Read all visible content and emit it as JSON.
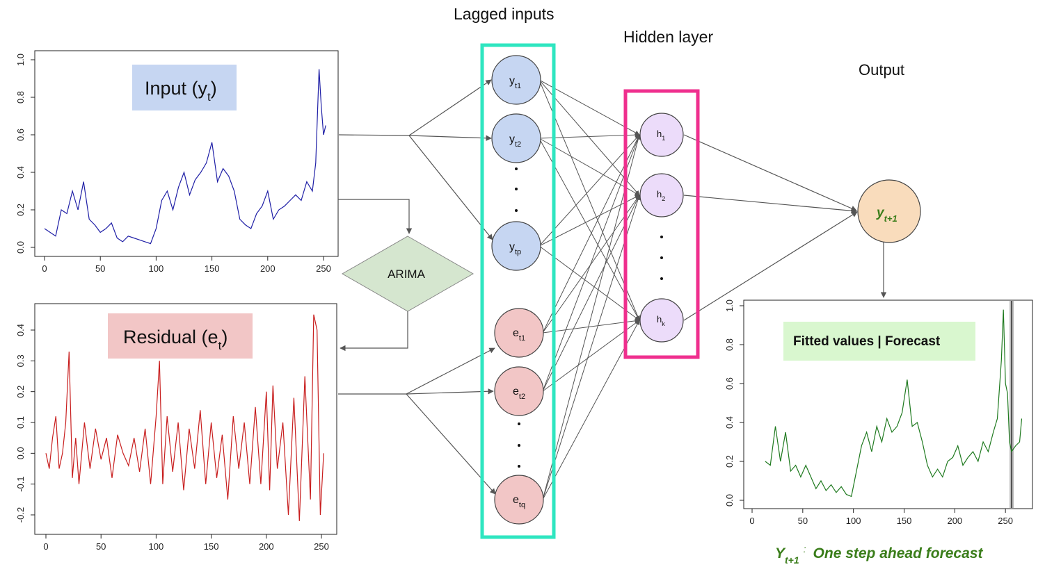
{
  "titles": {
    "lagged_inputs": "Lagged inputs",
    "hidden_layer": "Hidden layer",
    "output": "Output"
  },
  "panels": {
    "input": {
      "label_main": "Input (y",
      "label_sub": "t",
      "label_close": ")"
    },
    "residual": {
      "label_main": "Residual (e",
      "label_sub": "t",
      "label_close": ")"
    },
    "fitted": {
      "label": "Fitted values | Forecast"
    }
  },
  "arima": {
    "label": "ARIMA"
  },
  "nodes": {
    "y_inputs": [
      {
        "base": "y",
        "sub": "t1"
      },
      {
        "base": "y",
        "sub": "t2"
      },
      {
        "base": "y",
        "sub": "tp"
      }
    ],
    "e_inputs": [
      {
        "base": "e",
        "sub": "t1"
      },
      {
        "base": "e",
        "sub": "t2"
      },
      {
        "base": "e",
        "sub": "tq"
      }
    ],
    "hidden": [
      {
        "base": "h",
        "sub": "1"
      },
      {
        "base": "h",
        "sub": "2"
      },
      {
        "base": "h",
        "sub": "k"
      }
    ],
    "output": {
      "base": "y",
      "sub": "t+1"
    }
  },
  "caption": {
    "base": "Y",
    "sub": "t+1",
    "separator": ":",
    "text": "One step ahead forecast"
  },
  "colors": {
    "input_line": "#1f1fa6",
    "residual_line": "#c81e1e",
    "fitted_line": "#1f7a1f",
    "y_node": "#c6d6f2",
    "e_node": "#f2c6c6",
    "h_node": "#ecdcfa",
    "out_node": "#f9dcbc",
    "lagged_box": "#2ee6c0",
    "hidden_box": "#ef2f8e",
    "arima_fill": "#d5e6cf",
    "input_label_bg": "#c6d6f2",
    "residual_label_bg": "#f2c6c6",
    "fitted_label_bg": "#d9f7cf",
    "caption_text": "#3a7d1a"
  },
  "chart_data": [
    {
      "type": "line",
      "series_color": "#1f1fa6",
      "xlim": [
        0,
        250
      ],
      "ylim": [
        0.0,
        1.0
      ],
      "x_ticks": [
        "0",
        "50",
        "100",
        "150",
        "200",
        "250"
      ],
      "y_ticks": [
        "0.0",
        "0.2",
        "0.4",
        "0.6",
        "0.8",
        "1.0"
      ],
      "x": [
        0,
        5,
        10,
        15,
        20,
        25,
        30,
        35,
        40,
        45,
        50,
        55,
        60,
        65,
        70,
        75,
        80,
        85,
        90,
        95,
        100,
        105,
        110,
        115,
        120,
        125,
        130,
        135,
        140,
        145,
        150,
        155,
        160,
        165,
        170,
        175,
        180,
        185,
        190,
        195,
        200,
        205,
        210,
        215,
        220,
        225,
        230,
        235,
        240,
        243,
        246,
        248,
        250,
        252
      ],
      "y": [
        0.1,
        0.08,
        0.06,
        0.2,
        0.18,
        0.3,
        0.2,
        0.35,
        0.15,
        0.12,
        0.08,
        0.1,
        0.13,
        0.05,
        0.03,
        0.06,
        0.05,
        0.04,
        0.03,
        0.02,
        0.1,
        0.25,
        0.3,
        0.2,
        0.32,
        0.4,
        0.28,
        0.36,
        0.4,
        0.45,
        0.56,
        0.35,
        0.42,
        0.38,
        0.3,
        0.15,
        0.12,
        0.1,
        0.18,
        0.22,
        0.3,
        0.15,
        0.2,
        0.22,
        0.25,
        0.28,
        0.25,
        0.35,
        0.3,
        0.45,
        0.95,
        0.75,
        0.6,
        0.65
      ]
    },
    {
      "type": "line",
      "series_color": "#c81e1e",
      "xlim": [
        0,
        250
      ],
      "ylim": [
        -0.2,
        0.4
      ],
      "x_ticks": [
        "0",
        "50",
        "100",
        "150",
        "200",
        "250"
      ],
      "y_ticks": [
        "-0.2",
        "-0.1",
        "0.0",
        "0.1",
        "0.2",
        "0.3",
        "0.4"
      ],
      "x": [
        0,
        3,
        6,
        9,
        12,
        15,
        18,
        21,
        24,
        27,
        30,
        35,
        40,
        45,
        50,
        55,
        60,
        65,
        70,
        75,
        80,
        85,
        90,
        95,
        100,
        103,
        106,
        110,
        115,
        120,
        125,
        130,
        135,
        140,
        145,
        150,
        155,
        160,
        165,
        170,
        175,
        180,
        185,
        190,
        195,
        200,
        203,
        206,
        210,
        215,
        220,
        225,
        230,
        235,
        240,
        243,
        246,
        249,
        252
      ],
      "y": [
        0.0,
        -0.05,
        0.05,
        0.12,
        -0.05,
        0.0,
        0.1,
        0.33,
        -0.08,
        0.05,
        -0.1,
        0.1,
        -0.05,
        0.08,
        -0.02,
        0.05,
        -0.08,
        0.06,
        0.0,
        -0.04,
        0.05,
        -0.06,
        0.08,
        -0.1,
        0.12,
        0.3,
        -0.1,
        0.12,
        -0.06,
        0.1,
        -0.12,
        0.08,
        -0.05,
        0.14,
        -0.1,
        0.1,
        -0.08,
        0.06,
        -0.15,
        0.12,
        -0.05,
        0.1,
        -0.1,
        0.15,
        -0.1,
        0.2,
        -0.12,
        0.22,
        -0.05,
        0.1,
        -0.2,
        0.18,
        -0.22,
        0.25,
        -0.15,
        0.45,
        0.4,
        -0.2,
        0.0
      ]
    },
    {
      "type": "line",
      "series_color": "#1f7a1f",
      "xlim": [
        0,
        265
      ],
      "ylim": [
        0.0,
        1.0
      ],
      "x_ticks": [
        "0",
        "50",
        "100",
        "150",
        "200",
        "250"
      ],
      "y_ticks": [
        "0.0",
        "0.2",
        "0.4",
        "0.6",
        "0.8",
        "1.0"
      ],
      "x": [
        13,
        18,
        23,
        28,
        33,
        38,
        43,
        48,
        53,
        58,
        63,
        68,
        73,
        78,
        83,
        88,
        93,
        98,
        103,
        108,
        113,
        118,
        123,
        128,
        133,
        138,
        143,
        148,
        153,
        158,
        163,
        168,
        173,
        178,
        183,
        188,
        193,
        198,
        203,
        208,
        213,
        218,
        223,
        228,
        233,
        238,
        242,
        246,
        248,
        250,
        252,
        254,
        256,
        260,
        264,
        266
      ],
      "y": [
        0.2,
        0.18,
        0.38,
        0.2,
        0.35,
        0.15,
        0.18,
        0.12,
        0.18,
        0.12,
        0.06,
        0.1,
        0.05,
        0.08,
        0.04,
        0.07,
        0.03,
        0.02,
        0.15,
        0.28,
        0.35,
        0.25,
        0.38,
        0.3,
        0.42,
        0.35,
        0.38,
        0.45,
        0.62,
        0.38,
        0.4,
        0.3,
        0.18,
        0.12,
        0.16,
        0.12,
        0.2,
        0.22,
        0.28,
        0.18,
        0.22,
        0.25,
        0.2,
        0.3,
        0.25,
        0.35,
        0.42,
        0.72,
        0.98,
        0.6,
        0.55,
        0.3,
        0.25,
        0.28,
        0.3,
        0.42
      ]
    }
  ]
}
